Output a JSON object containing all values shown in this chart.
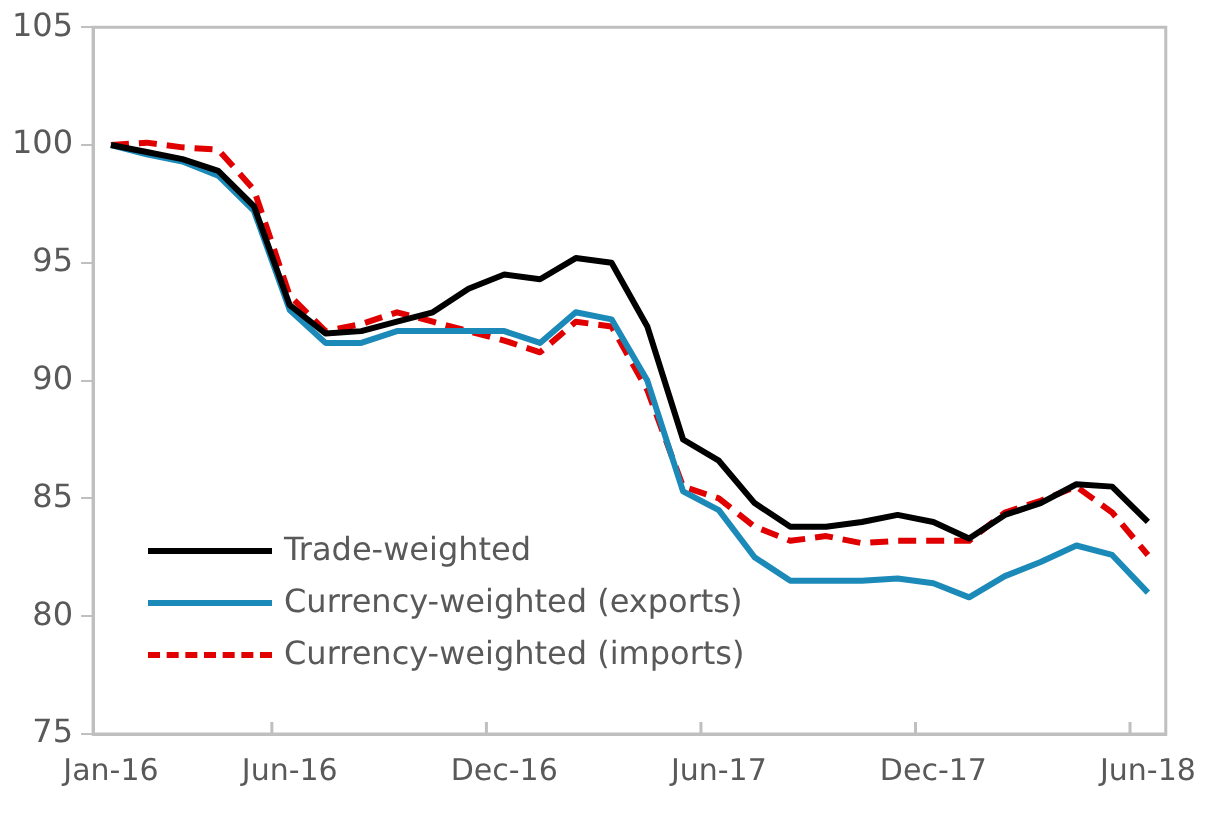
{
  "chart_data": {
    "type": "line",
    "categories": [
      "Jan-16",
      null,
      null,
      null,
      null,
      "Jun-16",
      null,
      null,
      null,
      null,
      null,
      "Dec-16",
      null,
      null,
      null,
      null,
      null,
      "Jun-17",
      null,
      null,
      null,
      null,
      null,
      "Dec-17",
      null,
      null,
      null,
      null,
      null,
      "Jun-18"
    ],
    "series": [
      {
        "name": "Trade-weighted",
        "color": "#000000",
        "line_style": "solid",
        "values": [
          100,
          99.7,
          99.4,
          98.9,
          97.4,
          93.2,
          92.0,
          92.1,
          92.5,
          92.9,
          93.9,
          94.5,
          94.3,
          95.2,
          95.0,
          92.3,
          87.5,
          86.6,
          84.8,
          83.8,
          83.8,
          84.0,
          84.3,
          84.0,
          83.3,
          84.3,
          84.8,
          85.6,
          85.5,
          84.0
        ]
      },
      {
        "name": "Currency-weighted (exports)",
        "color": "#1b8ab8",
        "line_style": "solid",
        "values": [
          100,
          99.6,
          99.3,
          98.7,
          97.2,
          93.0,
          91.6,
          91.6,
          92.1,
          92.1,
          92.1,
          92.1,
          91.6,
          92.9,
          92.6,
          90.0,
          85.3,
          84.5,
          82.5,
          81.5,
          81.5,
          81.5,
          81.6,
          81.4,
          80.8,
          81.7,
          82.3,
          83.0,
          82.6,
          81.0
        ]
      },
      {
        "name": "Currency-weighted (imports)",
        "color": "#e00000",
        "line_style": "dashed",
        "values": [
          100,
          100.1,
          99.9,
          99.8,
          98.1,
          93.6,
          92.1,
          92.4,
          92.9,
          92.5,
          92.1,
          91.7,
          91.2,
          92.5,
          92.3,
          89.6,
          85.5,
          85.0,
          83.8,
          83.2,
          83.4,
          83.1,
          83.2,
          83.2,
          83.2,
          84.4,
          84.9,
          85.5,
          84.4,
          82.6
        ]
      }
    ],
    "ylim": [
      75,
      105
    ],
    "yticks": [
      75,
      80,
      85,
      90,
      95,
      100,
      105
    ],
    "grid": false,
    "legend": "bottom left",
    "marker": "none"
  }
}
